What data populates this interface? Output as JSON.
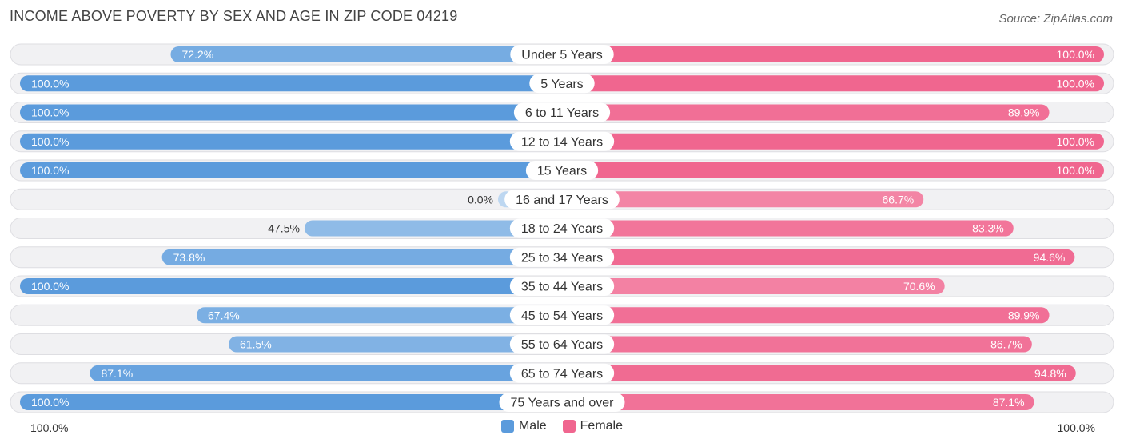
{
  "chart_data": {
    "type": "bar",
    "orientation": "horizontal-diverging",
    "title": "INCOME ABOVE POVERTY BY SEX AND AGE IN ZIP CODE 04219",
    "source": "Source: ZipAtlas.com",
    "categories": [
      "Under 5 Years",
      "5 Years",
      "6 to 11 Years",
      "12 to 14 Years",
      "15 Years",
      "16 and 17 Years",
      "18 to 24 Years",
      "25 to 34 Years",
      "35 to 44 Years",
      "45 to 54 Years",
      "55 to 64 Years",
      "65 to 74 Years",
      "75 Years and over"
    ],
    "series": [
      {
        "name": "Male",
        "color": "#5b9bdc",
        "values": [
          72.2,
          100.0,
          100.0,
          100.0,
          100.0,
          0.0,
          47.5,
          73.8,
          100.0,
          67.4,
          61.5,
          87.1,
          100.0
        ],
        "labels": [
          "72.2%",
          "100.0%",
          "100.0%",
          "100.0%",
          "100.0%",
          "0.0%",
          "47.5%",
          "73.8%",
          "100.0%",
          "67.4%",
          "61.5%",
          "87.1%",
          "100.0%"
        ]
      },
      {
        "name": "Female",
        "color": "#f0668f",
        "values": [
          100.0,
          100.0,
          89.9,
          100.0,
          100.0,
          66.7,
          83.3,
          94.6,
          70.6,
          89.9,
          86.7,
          94.8,
          87.1
        ],
        "labels": [
          "100.0%",
          "100.0%",
          "89.9%",
          "100.0%",
          "100.0%",
          "66.7%",
          "83.3%",
          "94.6%",
          "70.6%",
          "89.9%",
          "86.7%",
          "94.8%",
          "87.1%"
        ]
      }
    ],
    "xlim": [
      0,
      100
    ],
    "axis_left_label": "100.0%",
    "axis_right_label": "100.0%",
    "legend_position": "bottom-center"
  }
}
